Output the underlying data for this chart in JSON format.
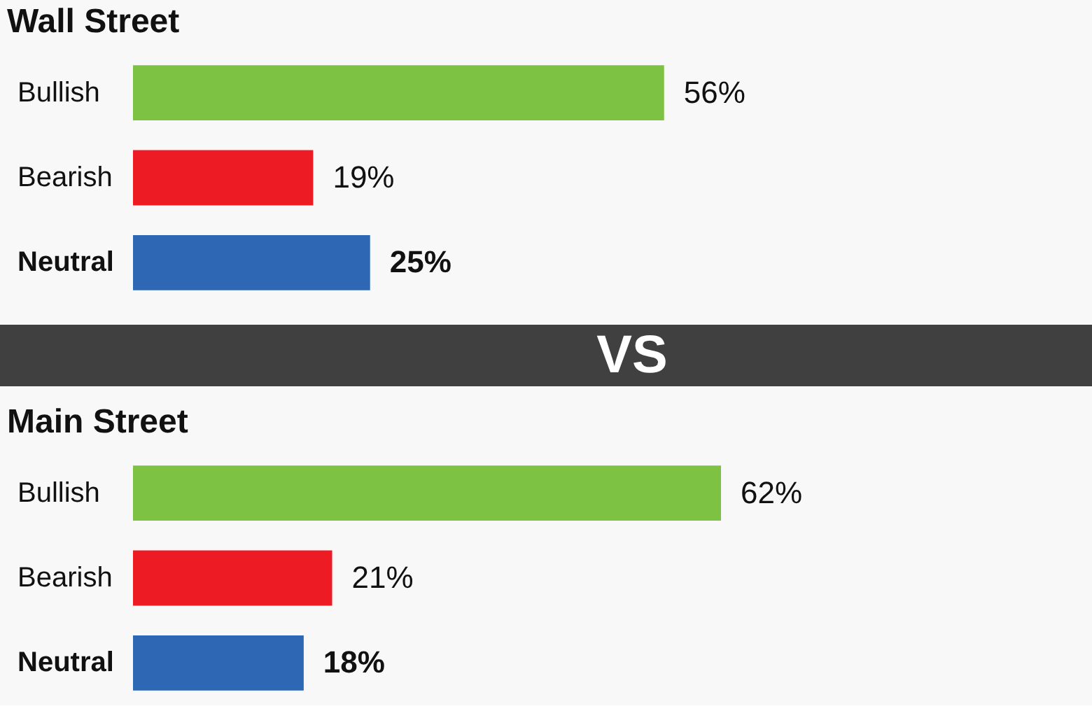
{
  "chart_data": [
    {
      "type": "bar",
      "title": "Wall Street",
      "orientation": "horizontal",
      "categories": [
        "Bullish",
        "Bearish",
        "Neutral"
      ],
      "values": [
        56,
        19,
        25
      ],
      "colors": [
        "#7dc242",
        "#ed1c24",
        "#2e67b3"
      ],
      "value_labels": [
        "56%",
        "19%",
        "25%"
      ],
      "tick_labels": "y"
    },
    {
      "type": "other",
      "annotations": [
        "VS"
      ],
      "color": "#404040"
    },
    {
      "type": "bar",
      "title": "Main Street",
      "orientation": "horizontal",
      "categories": [
        "Bullish",
        "Bearish",
        "Neutral"
      ],
      "values": [
        62,
        21,
        18
      ],
      "colors": [
        "#7dc242",
        "#ed1c24",
        "#2e67b3"
      ],
      "value_labels": [
        "62%",
        "21%",
        "18%"
      ],
      "tick_labels": "y"
    }
  ]
}
